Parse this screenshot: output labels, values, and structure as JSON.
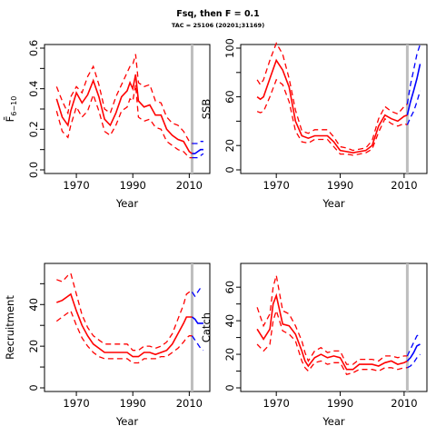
{
  "title": "Fsq, then F = 0.1",
  "subtitle": "TAC = 25106 (20201;31169)",
  "colors": {
    "historic": "#ff0000",
    "projection": "#0000ff",
    "marker": "#bebebe",
    "axis": "#000000"
  },
  "chart_data": [
    {
      "type": "line",
      "id": "fbar",
      "title": "",
      "xlabel": "Year",
      "ylabel": "F̄",
      "ylabel_sub": "6−10",
      "xlim": [
        1960,
        2016
      ],
      "ylim": [
        0,
        0.6
      ],
      "xticks": [
        1970,
        1990,
        2010
      ],
      "yticks": [
        0.0,
        0.2,
        0.4,
        0.6
      ],
      "yticklabels": [
        "0.0",
        "0.2",
        "0.4",
        "0.6"
      ],
      "yminor": [
        0.1,
        0.3,
        0.5
      ],
      "marker_year": 2011,
      "historic": {
        "x": [
          1963,
          1965,
          1967,
          1968,
          1970,
          1972,
          1974,
          1976,
          1978,
          1980,
          1982,
          1984,
          1986,
          1988,
          1989,
          1990,
          1991,
          1992,
          1994,
          1996,
          1998,
          2000,
          2002,
          2004,
          2006,
          2008,
          2010,
          2011
        ],
        "lower": [
          0.29,
          0.19,
          0.16,
          0.22,
          0.31,
          0.26,
          0.29,
          0.37,
          0.29,
          0.19,
          0.17,
          0.22,
          0.29,
          0.31,
          0.35,
          0.34,
          0.42,
          0.26,
          0.24,
          0.25,
          0.21,
          0.2,
          0.14,
          0.12,
          0.1,
          0.09,
          0.06,
          0.06
        ],
        "mid": [
          0.35,
          0.26,
          0.22,
          0.29,
          0.38,
          0.33,
          0.37,
          0.44,
          0.36,
          0.25,
          0.22,
          0.28,
          0.36,
          0.39,
          0.43,
          0.4,
          0.47,
          0.34,
          0.31,
          0.32,
          0.27,
          0.27,
          0.2,
          0.17,
          0.15,
          0.14,
          0.09,
          0.08
        ],
        "upper": [
          0.41,
          0.34,
          0.28,
          0.36,
          0.41,
          0.38,
          0.46,
          0.51,
          0.42,
          0.3,
          0.28,
          0.36,
          0.42,
          0.48,
          0.51,
          0.52,
          0.57,
          0.43,
          0.41,
          0.42,
          0.34,
          0.33,
          0.26,
          0.23,
          0.22,
          0.19,
          0.14,
          0.13
        ]
      },
      "projection": {
        "x": [
          2011,
          2012,
          2013,
          2014,
          2015
        ],
        "lower": [
          0.06,
          0.06,
          0.06,
          0.07,
          0.08
        ],
        "mid": [
          0.08,
          0.08,
          0.09,
          0.1,
          0.1
        ],
        "upper": [
          0.13,
          0.13,
          0.13,
          0.14,
          0.14
        ]
      }
    },
    {
      "type": "line",
      "id": "ssb",
      "title": "",
      "xlabel": "Year",
      "ylabel": "SSB",
      "xlim": [
        1960,
        2016
      ],
      "ylim": [
        0,
        100
      ],
      "xticks": [
        1970,
        1990,
        2010
      ],
      "yticks": [
        0,
        20,
        60,
        100
      ],
      "yticklabels": [
        "0",
        "20",
        "60",
        "100"
      ],
      "yminor": [
        40,
        80
      ],
      "marker_year": 2011,
      "historic": {
        "x": [
          1964,
          1965,
          1966,
          1968,
          1970,
          1972,
          1974,
          1976,
          1978,
          1980,
          1982,
          1984,
          1986,
          1988,
          1990,
          1992,
          1994,
          1996,
          1998,
          2000,
          2002,
          2004,
          2006,
          2008,
          2010,
          2011
        ],
        "lower": [
          48,
          47,
          48,
          60,
          74,
          70,
          56,
          32,
          23,
          22,
          25,
          25,
          25,
          19,
          13,
          13,
          12,
          13,
          14,
          17,
          31,
          42,
          38,
          36,
          38,
          37
        ],
        "mid": [
          60,
          58,
          60,
          75,
          90,
          82,
          68,
          40,
          28,
          26,
          28,
          28,
          28,
          23,
          16,
          15,
          14,
          15,
          16,
          20,
          36,
          45,
          42,
          40,
          44,
          45
        ],
        "upper": [
          74,
          70,
          74,
          90,
          104,
          95,
          75,
          49,
          32,
          30,
          33,
          33,
          33,
          27,
          19,
          18,
          16,
          17,
          18,
          24,
          42,
          52,
          48,
          46,
          52,
          54
        ]
      },
      "projection": {
        "x": [
          2011,
          2012,
          2013,
          2014,
          2015
        ],
        "lower": [
          37,
          43,
          48,
          56,
          65
        ],
        "mid": [
          45,
          56,
          65,
          75,
          87
        ],
        "upper": [
          54,
          70,
          82,
          95,
          103
        ]
      }
    },
    {
      "type": "line",
      "id": "recruitment",
      "title": "",
      "xlabel": "Year",
      "ylabel": "Recruitment",
      "xlim": [
        1960,
        2016
      ],
      "ylim": [
        0,
        58
      ],
      "xticks": [
        1970,
        1990,
        2010
      ],
      "yticks": [
        0,
        20,
        40
      ],
      "yticklabels": [
        "0",
        "20",
        "40"
      ],
      "yminor": [
        10,
        30,
        50
      ],
      "marker_year": 2011,
      "historic": {
        "x": [
          1963,
          1965,
          1967,
          1968,
          1970,
          1972,
          1974,
          1976,
          1978,
          1980,
          1982,
          1984,
          1986,
          1988,
          1990,
          1992,
          1994,
          1996,
          1998,
          2000,
          2002,
          2004,
          2006,
          2008,
          2009,
          2010,
          2011
        ],
        "lower": [
          32,
          34,
          36,
          37,
          30,
          24,
          20,
          17,
          15,
          14,
          14,
          14,
          14,
          14,
          12,
          12,
          14,
          14,
          14,
          15,
          15,
          17,
          19,
          22,
          24,
          25,
          25
        ],
        "mid": [
          41,
          42,
          44,
          45,
          37,
          30,
          25,
          21,
          19,
          17,
          17,
          17,
          17,
          17,
          15,
          15,
          17,
          17,
          16,
          17,
          18,
          21,
          26,
          31,
          34,
          34,
          34
        ],
        "upper": [
          52,
          51,
          54,
          55,
          45,
          35,
          29,
          25,
          23,
          21,
          21,
          21,
          21,
          21,
          18,
          18,
          20,
          20,
          19,
          20,
          22,
          26,
          33,
          40,
          45,
          46,
          46
        ]
      },
      "projection": {
        "x": [
          2011,
          2012,
          2013,
          2014,
          2015
        ],
        "lower": [
          25,
          23,
          21,
          19,
          18
        ],
        "mid": [
          34,
          33,
          31,
          31,
          31
        ],
        "upper": [
          46,
          44,
          46,
          48,
          48
        ]
      }
    },
    {
      "type": "line",
      "id": "catch",
      "title": "",
      "xlabel": "Year",
      "ylabel": "Catch",
      "xlim": [
        1960,
        2016
      ],
      "ylim": [
        0,
        72
      ],
      "xticks": [
        1970,
        1990,
        2010
      ],
      "yticks": [
        0,
        20,
        40,
        60
      ],
      "yticklabels": [
        "0",
        "20",
        "40",
        "60"
      ],
      "yminor": [
        10,
        30,
        50
      ],
      "marker_year": 2011,
      "historic": {
        "x": [
          1964,
          1966,
          1968,
          1969,
          1970,
          1972,
          1974,
          1976,
          1978,
          1979,
          1980,
          1982,
          1984,
          1986,
          1988,
          1990,
          1992,
          1994,
          1996,
          1998,
          2000,
          2002,
          2004,
          2006,
          2008,
          2010,
          2011
        ],
        "lower": [
          26,
          22,
          26,
          40,
          46,
          34,
          32,
          28,
          16,
          12,
          10,
          15,
          16,
          14,
          15,
          15,
          8,
          9,
          11,
          11,
          11,
          10,
          12,
          12,
          11,
          12,
          12
        ],
        "mid": [
          35,
          29,
          35,
          50,
          55,
          38,
          37,
          32,
          22,
          16,
          13,
          18,
          20,
          18,
          19,
          18,
          11,
          11,
          14,
          14,
          14,
          13,
          15,
          16,
          14,
          15,
          16
        ],
        "upper": [
          48,
          37,
          44,
          60,
          67,
          46,
          44,
          37,
          28,
          21,
          16,
          22,
          24,
          21,
          22,
          22,
          14,
          14,
          17,
          17,
          17,
          16,
          19,
          19,
          18,
          19,
          19
        ]
      },
      "projection": {
        "x": [
          2011,
          2012,
          2013,
          2014,
          2015
        ],
        "lower": [
          12,
          13,
          15,
          18,
          20
        ],
        "mid": [
          16,
          18,
          21,
          25,
          26
        ],
        "upper": [
          19,
          23,
          27,
          31,
          32
        ]
      }
    }
  ]
}
